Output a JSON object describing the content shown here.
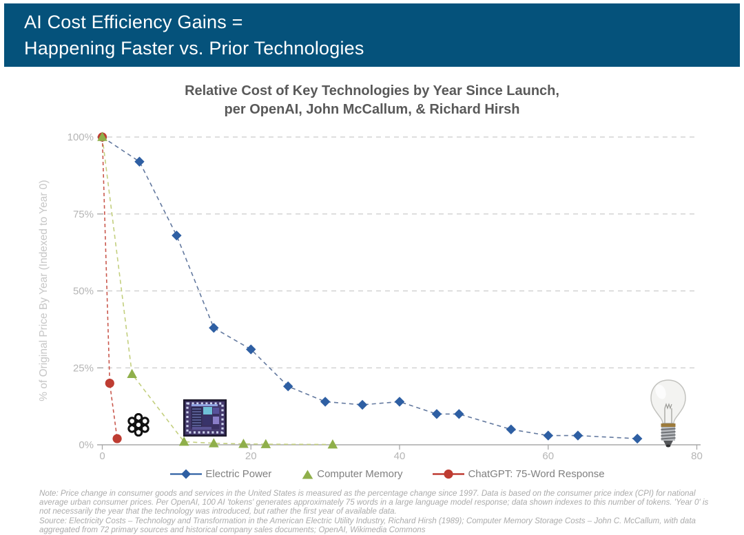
{
  "header": {
    "line1": "AI Cost Efficiency Gains =",
    "line2": "Happening Faster vs. Prior Technologies"
  },
  "chart_data": {
    "type": "line",
    "title": "Relative Cost of Key Technologies by Year Since Launch, per OpenAI, John McCallum, & Richard Hirsh",
    "title_lines": [
      "Relative Cost of Key Technologies by Year Since Launch,",
      "per OpenAI, John McCallum, & Richard Hirsh"
    ],
    "xlabel": "",
    "ylabel": "% of Original Price By Year (Indexed to Year 0)",
    "xlim": [
      0,
      80
    ],
    "ylim": [
      0,
      100
    ],
    "grid": "horizontal-dashed",
    "legend_position": "bottom",
    "x_ticks": [
      {
        "v": 0,
        "label": "0"
      },
      {
        "v": 20,
        "label": "20"
      },
      {
        "v": 40,
        "label": "40"
      },
      {
        "v": 60,
        "label": "60"
      },
      {
        "v": 80,
        "label": "80"
      }
    ],
    "y_ticks": [
      {
        "v": 0,
        "label": "0%"
      },
      {
        "v": 25,
        "label": "25%"
      },
      {
        "v": 50,
        "label": "50%"
      },
      {
        "v": 75,
        "label": "75%"
      },
      {
        "v": 100,
        "label": "100%"
      }
    ],
    "series": [
      {
        "name": "Electric Power",
        "marker": "diamond",
        "color": "#2E5FA3",
        "line_color": "#63799F",
        "dash": "6 5",
        "points": [
          [
            0,
            100
          ],
          [
            5,
            92
          ],
          [
            10,
            68
          ],
          [
            15,
            38
          ],
          [
            20,
            31
          ],
          [
            25,
            19
          ],
          [
            30,
            14
          ],
          [
            35,
            13
          ],
          [
            40,
            14
          ],
          [
            45,
            10
          ],
          [
            48,
            10
          ],
          [
            55,
            5
          ],
          [
            60,
            3
          ],
          [
            64,
            3
          ],
          [
            72,
            2
          ]
        ]
      },
      {
        "name": "Computer Memory",
        "marker": "triangle",
        "color": "#8FAF4A",
        "line_color": "#C3CF7E",
        "dash": "6 5",
        "points": [
          [
            0,
            100
          ],
          [
            4,
            23
          ],
          [
            11,
            1
          ],
          [
            15,
            0.5
          ],
          [
            19,
            0.3
          ],
          [
            22,
            0.2
          ],
          [
            31,
            0.1
          ]
        ]
      },
      {
        "name": "ChatGPT: 75-Word Response",
        "marker": "circle",
        "color": "#BE3C32",
        "line_color": "#C9584D",
        "dash": "5 4",
        "points": [
          [
            0,
            100
          ],
          [
            1,
            20
          ],
          [
            2,
            2
          ]
        ]
      }
    ],
    "images": [
      {
        "name": "openai-logo"
      },
      {
        "name": "microchip-photo"
      },
      {
        "name": "incandescent-lightbulb-photo"
      }
    ]
  },
  "footnote": {
    "note": "Note: Price change in consumer goods and services in the United States is measured as the percentage change since 1997. Data is based on the consumer price index (CPI) for national average urban consumer prices. Per OpenAI, 100 AI 'tokens' generates approximately 75 words in a large language model response; data shown indexes to this number of tokens. 'Year 0' is not necessarily the year that the technology was introduced, but rather the first year of available data.",
    "source": "Source: Electricity Costs – Technology and Transformation in the American Electric Utility Industry, Richard Hirsh (1989); Computer Memory Storage Costs – John C. McCallum, with data aggregated from 72 primary sources and historical company sales documents; OpenAI, Wikimedia Commons"
  },
  "colors": {
    "header_bg": "#05527B",
    "header_text": "#FFFFFF",
    "title_text": "#595959",
    "tick_label": "#B5B5B5",
    "y_axis_title": "#C6C6C6",
    "legend_text": "#7F7F7F",
    "note_text": "#ABABAB",
    "gridline": "#CBCBCB",
    "axis_line": "#A8A8A8"
  }
}
